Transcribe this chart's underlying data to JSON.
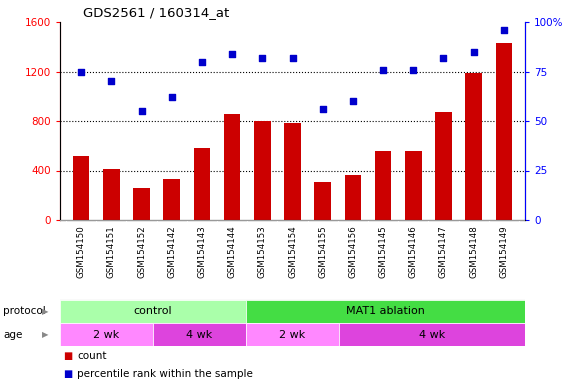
{
  "title": "GDS2561 / 160314_at",
  "categories": [
    "GSM154150",
    "GSM154151",
    "GSM154152",
    "GSM154142",
    "GSM154143",
    "GSM154144",
    "GSM154153",
    "GSM154154",
    "GSM154155",
    "GSM154156",
    "GSM154145",
    "GSM154146",
    "GSM154147",
    "GSM154148",
    "GSM154149"
  ],
  "bar_values": [
    520,
    410,
    260,
    330,
    580,
    860,
    800,
    780,
    310,
    360,
    560,
    560,
    870,
    1190,
    1430
  ],
  "dot_values_pct": [
    75,
    70,
    55,
    62,
    80,
    84,
    82,
    82,
    56,
    60,
    76,
    76,
    82,
    85,
    96
  ],
  "bar_color": "#cc0000",
  "dot_color": "#0000cc",
  "left_ylim": [
    0,
    1600
  ],
  "right_ylim": [
    0,
    100
  ],
  "left_yticks": [
    0,
    400,
    800,
    1200,
    1600
  ],
  "right_yticks": [
    0,
    25,
    50,
    75,
    100
  ],
  "right_yticklabels": [
    "0",
    "25",
    "50",
    "75",
    "100%"
  ],
  "grid_values": [
    400,
    800,
    1200
  ],
  "protocol_groups": [
    {
      "label": "control",
      "start": 0,
      "end": 6,
      "color": "#aaffaa"
    },
    {
      "label": "MAT1 ablation",
      "start": 6,
      "end": 15,
      "color": "#44dd44"
    }
  ],
  "age_groups": [
    {
      "label": "2 wk",
      "start": 0,
      "end": 3,
      "color": "#ff88ff"
    },
    {
      "label": "4 wk",
      "start": 3,
      "end": 6,
      "color": "#dd44dd"
    },
    {
      "label": "2 wk",
      "start": 6,
      "end": 9,
      "color": "#ff88ff"
    },
    {
      "label": "4 wk",
      "start": 9,
      "end": 15,
      "color": "#dd44dd"
    }
  ],
  "protocol_label": "protocol",
  "age_label": "age",
  "legend_count_label": "count",
  "legend_pct_label": "percentile rank within the sample",
  "tick_area_bg": "#cccccc",
  "background_color": "#ffffff"
}
